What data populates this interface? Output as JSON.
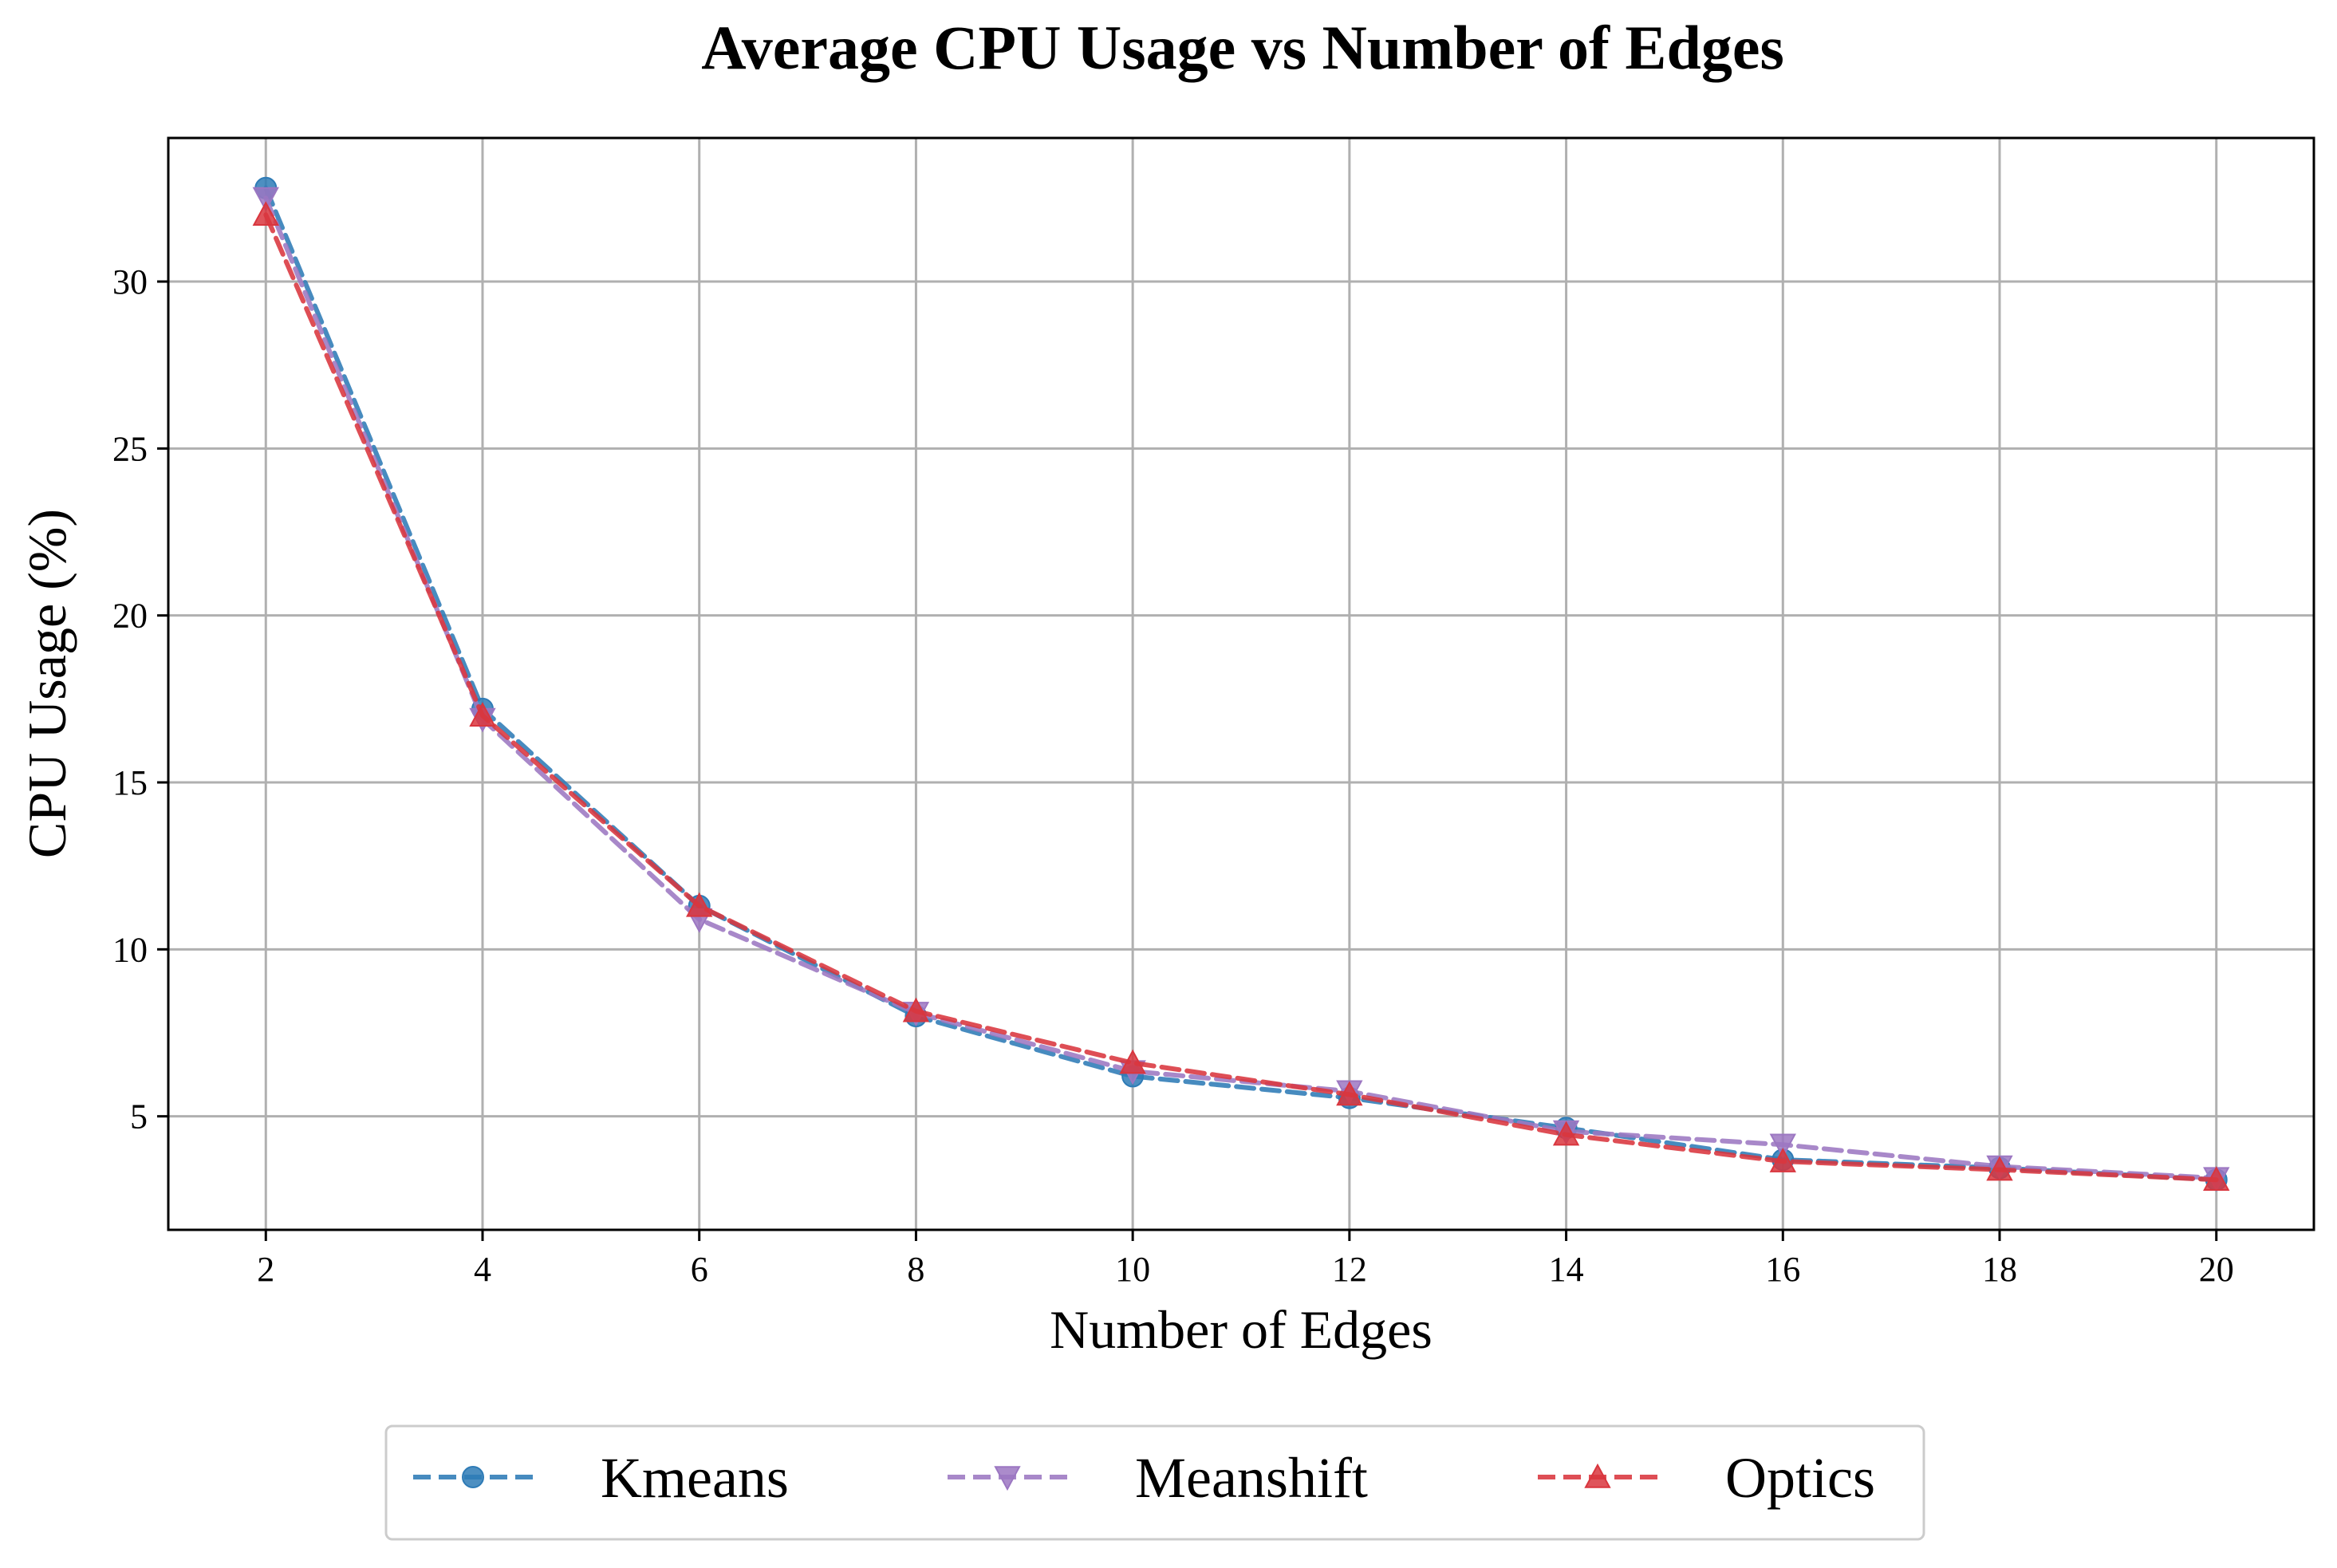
{
  "chart_data": {
    "type": "line",
    "title": "Average CPU Usage vs Number of Edges",
    "xlabel": "Number of Edges",
    "ylabel": "CPU Usage (%)",
    "x": [
      2,
      4,
      6,
      8,
      10,
      12,
      14,
      16,
      18,
      20
    ],
    "xlim": [
      1.1,
      20.9
    ],
    "ylim": [
      1.6,
      34.3
    ],
    "xticks": [
      2,
      4,
      6,
      8,
      10,
      12,
      14,
      16,
      18,
      20
    ],
    "yticks": [
      5,
      10,
      15,
      20,
      25,
      30
    ],
    "grid": true,
    "legend_position": "bottom-center, below plot",
    "series": [
      {
        "name": "Kmeans",
        "color": "#2e7bb6",
        "marker": "circle",
        "line_style": "dashed",
        "values": [
          32.8,
          17.2,
          11.3,
          8.0,
          6.2,
          5.55,
          4.65,
          3.7,
          3.45,
          3.1
        ]
      },
      {
        "name": "Meanshift",
        "color": "#9c77c2",
        "marker": "triangle-down",
        "line_style": "dashed",
        "values": [
          32.5,
          16.9,
          10.9,
          8.1,
          6.35,
          5.75,
          4.55,
          4.15,
          3.5,
          3.15
        ]
      },
      {
        "name": "Optics",
        "color": "#d9363e",
        "marker": "triangle-up",
        "line_style": "dashed",
        "values": [
          32.0,
          17.0,
          11.3,
          8.15,
          6.6,
          5.65,
          4.45,
          3.65,
          3.4,
          3.1
        ]
      }
    ]
  }
}
